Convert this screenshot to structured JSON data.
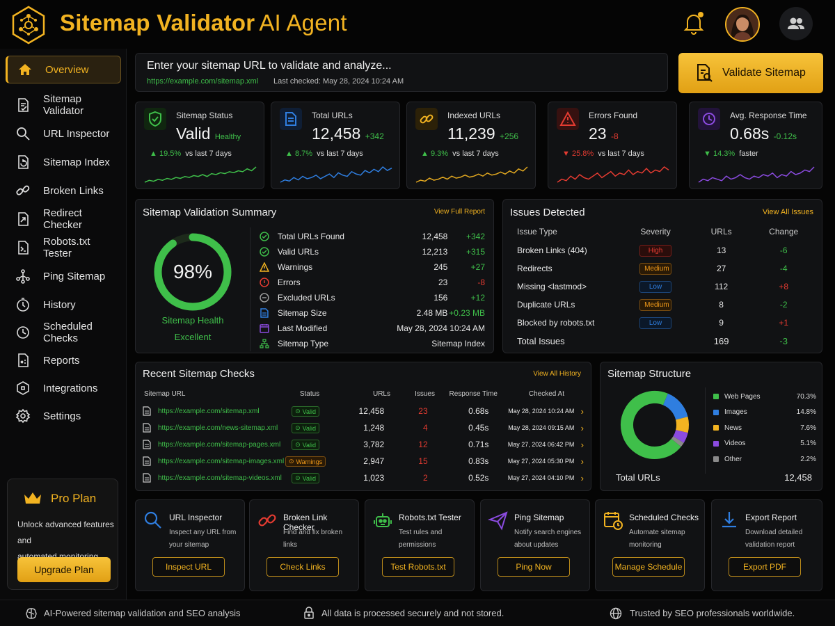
{
  "header": {
    "title": "Sitemap Validator",
    "subtitle": "AI Agent"
  },
  "sidebar": {
    "items": [
      {
        "label": "Overview",
        "icon": "home-icon",
        "active": true
      },
      {
        "label": "Sitemap Validator",
        "icon": "doc-check-icon"
      },
      {
        "label": "URL Inspector",
        "icon": "search-icon"
      },
      {
        "label": "Sitemap Index",
        "icon": "doc-refresh-icon"
      },
      {
        "label": "Broken Links",
        "icon": "broken-link-icon"
      },
      {
        "label": "Redirect Checker",
        "icon": "redirect-icon"
      },
      {
        "label": "Robots.txt Tester",
        "icon": "robot-doc-icon"
      },
      {
        "label": "Ping Sitemap",
        "icon": "ping-icon"
      },
      {
        "label": "History",
        "icon": "history-icon"
      },
      {
        "label": "Scheduled Checks",
        "icon": "clock-icon"
      },
      {
        "label": "Reports",
        "icon": "report-icon"
      },
      {
        "label": "Integrations",
        "icon": "integration-icon"
      },
      {
        "label": "Settings",
        "icon": "gear-icon"
      }
    ],
    "pro": {
      "title": "Pro Plan",
      "desc_line1": "Unlock advanced features and",
      "desc_line2": "automated monitoring.",
      "button": "Upgrade Plan"
    }
  },
  "urlbar": {
    "prompt": "Enter your sitemap URL to validate and analyze...",
    "url": "https://example.com/sitemap.xml",
    "last_checked": "Last checked: May 28, 2024 10:24 AM",
    "button": "Validate Sitemap"
  },
  "stats": [
    {
      "label": "Sitemap Status",
      "value": "Valid",
      "extra": "Healthy",
      "delta": "19.5%",
      "delta_text": "vs last 7 days",
      "trend": "up",
      "color": "#3fbf4a",
      "spark": [
        6,
        8,
        7,
        9,
        8,
        10,
        9,
        11,
        10,
        12,
        11,
        13,
        12,
        14,
        12,
        15,
        14,
        16,
        15,
        17,
        16,
        18,
        17,
        20,
        18,
        22
      ]
    },
    {
      "label": "Total URLs",
      "value": "12,458",
      "extra": "+342",
      "delta": "8.7%",
      "delta_text": "vs last 7 days",
      "trend": "up",
      "color": "#2f7ee0",
      "spark": [
        8,
        10,
        9,
        12,
        10,
        13,
        11,
        12,
        14,
        11,
        13,
        15,
        12,
        16,
        14,
        13,
        17,
        15,
        14,
        18,
        16,
        19,
        17,
        21,
        18,
        20
      ]
    },
    {
      "label": "Indexed URLs",
      "value": "11,239",
      "extra": "+256",
      "delta": "9.3%",
      "delta_text": "vs last 7 days",
      "trend": "up",
      "color": "#e2a820",
      "spark": [
        7,
        9,
        8,
        11,
        9,
        10,
        12,
        10,
        13,
        11,
        12,
        14,
        12,
        13,
        15,
        13,
        16,
        14,
        15,
        17,
        15,
        18,
        16,
        20,
        18,
        22
      ]
    },
    {
      "label": "Errors Found",
      "value": "23",
      "extra": "-8",
      "delta": "25.8%",
      "delta_text": "vs last 7 days",
      "trend": "down",
      "color": "#e43b31",
      "spark": [
        10,
        12,
        11,
        14,
        12,
        15,
        13,
        12,
        14,
        16,
        13,
        15,
        17,
        14,
        16,
        15,
        18,
        15,
        17,
        16,
        19,
        16,
        18,
        17,
        20,
        18
      ]
    },
    {
      "label": "Avg. Response Time",
      "value": "0.68s",
      "extra": "-0.12s",
      "delta": "14.3%",
      "delta_text": "faster",
      "trend": "down",
      "color": "#8b4be0",
      "spark": [
        9,
        11,
        10,
        12,
        11,
        10,
        13,
        11,
        12,
        14,
        12,
        11,
        13,
        12,
        14,
        13,
        15,
        12,
        14,
        13,
        16,
        14,
        15,
        17,
        16,
        19
      ]
    }
  ],
  "summary": {
    "title": "Sitemap Validation Summary",
    "link": "View Full Report",
    "percent": "98%",
    "percent_value": 0.98,
    "health_label": "Sitemap Health",
    "health_value": "Excellent",
    "rows": [
      {
        "icon": "check-circle-icon",
        "color": "#3fbf4a",
        "label": "Total URLs Found",
        "value": "12,458",
        "change": "+342",
        "dir": "up"
      },
      {
        "icon": "check-circle-icon",
        "color": "#3fbf4a",
        "label": "Valid URLs",
        "value": "12,213",
        "change": "+315",
        "dir": "up"
      },
      {
        "icon": "warning-icon",
        "color": "#f2b321",
        "label": "Warnings",
        "value": "245",
        "change": "+27",
        "dir": "up"
      },
      {
        "icon": "error-icon",
        "color": "#e43b31",
        "label": "Errors",
        "value": "23",
        "change": "-8",
        "dir": "down"
      },
      {
        "icon": "minus-circle-icon",
        "color": "#9a9a9a",
        "label": "Excluded URLs",
        "value": "156",
        "change": "+12",
        "dir": "up"
      },
      {
        "icon": "file-icon",
        "color": "#2f7ee0",
        "label": "Sitemap Size",
        "value": "2.48 MB",
        "change": "+0.23 MB",
        "dir": "up"
      },
      {
        "icon": "calendar-icon",
        "color": "#8b4be0",
        "label": "Last Modified",
        "value": "May 28, 2024 10:24 AM",
        "change": "",
        "dir": ""
      },
      {
        "icon": "tree-icon",
        "color": "#3fbf4a",
        "label": "Sitemap Type",
        "value": "Sitemap Index",
        "change": "",
        "dir": ""
      }
    ]
  },
  "issues": {
    "title": "Issues Detected",
    "link": "View All Issues",
    "headers": [
      "Issue Type",
      "Severity",
      "URLs",
      "Change"
    ],
    "rows": [
      {
        "type": "Broken Links (404)",
        "severity": "High",
        "sev_color": "#e43b31",
        "urls": "13",
        "change": "-6",
        "dir": "down"
      },
      {
        "type": "Redirects",
        "severity": "Medium",
        "sev_color": "#f09a1a",
        "urls": "27",
        "change": "-4",
        "dir": "down"
      },
      {
        "type": "Missing <lastmod>",
        "severity": "Low",
        "sev_color": "#2f7ee0",
        "urls": "112",
        "change": "+8",
        "dir": "up"
      },
      {
        "type": "Duplicate URLs",
        "severity": "Medium",
        "sev_color": "#f09a1a",
        "urls": "8",
        "change": "-2",
        "dir": "down"
      },
      {
        "type": "Blocked by robots.txt",
        "severity": "Low",
        "sev_color": "#2f7ee0",
        "urls": "9",
        "change": "+1",
        "dir": "up"
      }
    ],
    "total_label": "Total Issues",
    "total_urls": "169",
    "total_change": "-3"
  },
  "recent": {
    "title": "Recent Sitemap Checks",
    "link": "View All History",
    "headers": [
      "Sitemap URL",
      "Status",
      "URLs",
      "Issues",
      "Response Time",
      "Checked At"
    ],
    "rows": [
      {
        "url": "https://example.com/sitemap.xml",
        "status": "Valid",
        "urls": "12,458",
        "issues": "23",
        "time": "0.68s",
        "checked": "May 28, 2024 10:24 AM"
      },
      {
        "url": "https://example.com/news-sitemap.xml",
        "status": "Valid",
        "urls": "1,248",
        "issues": "4",
        "time": "0.45s",
        "checked": "May 28, 2024 09:15 AM"
      },
      {
        "url": "https://example.com/sitemap-pages.xml",
        "status": "Valid",
        "urls": "3,782",
        "issues": "12",
        "time": "0.71s",
        "checked": "May 27, 2024 06:42 PM"
      },
      {
        "url": "https://example.com/sitemap-images.xml",
        "status": "Warnings",
        "urls": "2,947",
        "issues": "15",
        "time": "0.83s",
        "checked": "May 27, 2024 05:30 PM"
      },
      {
        "url": "https://example.com/sitemap-videos.xml",
        "status": "Valid",
        "urls": "1,023",
        "issues": "2",
        "time": "0.52s",
        "checked": "May 27, 2024 04:10 PM"
      }
    ]
  },
  "structure": {
    "title": "Sitemap Structure",
    "total_label": "Total URLs",
    "total_value": "12,458"
  },
  "chart_data": {
    "type": "pie",
    "categories": [
      "Web Pages",
      "Images",
      "News",
      "Videos",
      "Other"
    ],
    "values": [
      70.3,
      14.8,
      7.6,
      5.1,
      2.2
    ],
    "labels": [
      "70.3%",
      "14.8%",
      "7.6%",
      "5.1%",
      "2.2%"
    ],
    "colors": [
      "#3fbf4a",
      "#2f7ee0",
      "#f2b321",
      "#8b4be0",
      "#8a8a8a"
    ],
    "donut": true
  },
  "tools": [
    {
      "icon": "search-icon",
      "color": "#2f7ee0",
      "title": "URL Inspector",
      "desc1": "Inspect any URL from",
      "desc2": "your sitemap",
      "button": "Inspect URL"
    },
    {
      "icon": "broken-link-icon",
      "color": "#e43b31",
      "title": "Broken Link Checker",
      "desc1": "Find and fix broken",
      "desc2": "links",
      "button": "Check Links"
    },
    {
      "icon": "robot-icon",
      "color": "#3fbf4a",
      "title": "Robots.txt Tester",
      "desc1": "Test rules and",
      "desc2": "permissions",
      "button": "Test Robots.txt"
    },
    {
      "icon": "paper-plane-icon",
      "color": "#8b4be0",
      "title": "Ping Sitemap",
      "desc1": "Notify search engines",
      "desc2": "about updates",
      "button": "Ping Now"
    },
    {
      "icon": "calendar-clock-icon",
      "color": "#f2b321",
      "title": "Scheduled Checks",
      "desc1": "Automate sitemap",
      "desc2": "monitoring",
      "button": "Manage Schedule"
    },
    {
      "icon": "download-icon",
      "color": "#2f7ee0",
      "title": "Export Report",
      "desc1": "Download detailed",
      "desc2": "validation report",
      "button": "Export PDF"
    }
  ],
  "footer": {
    "left": "AI-Powered sitemap validation and SEO analysis",
    "center": "All data is processed securely and not stored.",
    "right": "Trusted by SEO professionals worldwide."
  }
}
